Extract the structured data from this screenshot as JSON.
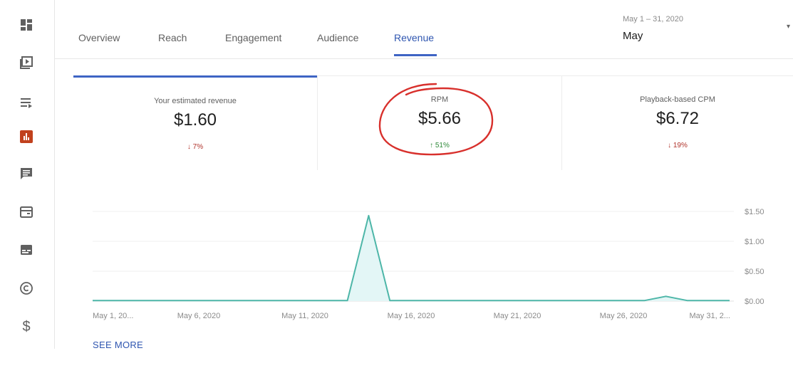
{
  "sidebar": {
    "icons": [
      "dashboard-icon",
      "content-icon",
      "playlists-icon",
      "analytics-icon",
      "comments-icon",
      "subtitles-icon",
      "audio-library-icon",
      "copyright-icon",
      "monetization-icon"
    ]
  },
  "tabs": [
    {
      "label": "Overview"
    },
    {
      "label": "Reach"
    },
    {
      "label": "Engagement"
    },
    {
      "label": "Audience"
    },
    {
      "label": "Revenue",
      "active": true
    }
  ],
  "date_picker": {
    "range": "May 1 – 31, 2020",
    "selected": "May"
  },
  "cards": [
    {
      "label": "Your estimated revenue",
      "value": "$1.60",
      "delta": "7%",
      "direction": "down",
      "selected": true
    },
    {
      "label": "RPM",
      "value": "$5.66",
      "delta": "51%",
      "direction": "up",
      "circled": true
    },
    {
      "label": "Playback-based CPM",
      "value": "$6.72",
      "delta": "19%",
      "direction": "down"
    }
  ],
  "colors": {
    "accent": "#3e64c4",
    "line": "#4db6a8",
    "fill": "#e3f6f6",
    "down": "#b0332b",
    "up": "#2f8a3a",
    "annotation": "#d8302c"
  },
  "see_more": "SEE MORE",
  "chart_data": {
    "type": "area",
    "x": [
      "May 1",
      "May 2",
      "May 3",
      "May 4",
      "May 5",
      "May 6",
      "May 7",
      "May 8",
      "May 9",
      "May 10",
      "May 11",
      "May 12",
      "May 13",
      "May 14",
      "May 15",
      "May 16",
      "May 17",
      "May 18",
      "May 19",
      "May 20",
      "May 21",
      "May 22",
      "May 23",
      "May 24",
      "May 25",
      "May 26",
      "May 27",
      "May 28",
      "May 29",
      "May 30",
      "May 31"
    ],
    "values": [
      0.01,
      0.01,
      0.01,
      0.01,
      0.01,
      0.01,
      0.01,
      0.01,
      0.01,
      0.01,
      0.01,
      0.01,
      0.01,
      1.43,
      0.01,
      0.01,
      0.01,
      0.01,
      0.01,
      0.01,
      0.01,
      0.01,
      0.01,
      0.01,
      0.01,
      0.01,
      0.01,
      0.08,
      0.01,
      0.01,
      0.01
    ],
    "x_tick_labels": [
      "May 1, 20...",
      "May 6, 2020",
      "May 11, 2020",
      "May 16, 2020",
      "May 21, 2020",
      "May 26, 2020",
      "May 31, 2..."
    ],
    "x_tick_index": [
      0,
      5,
      10,
      15,
      20,
      25,
      30
    ],
    "y_tick_labels": [
      "$1.50",
      "$1.00",
      "$0.50",
      "$0.00"
    ],
    "y_ticks": [
      1.5,
      1.0,
      0.5,
      0.0
    ],
    "ylim": [
      0,
      1.5
    ],
    "grid": true
  }
}
